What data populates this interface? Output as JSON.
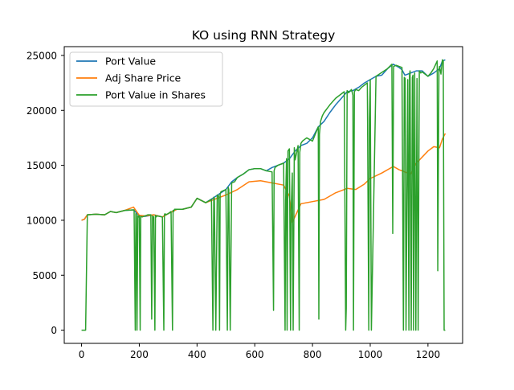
{
  "chart_data": {
    "type": "line",
    "title": "KO using RNN Strategy",
    "xlabel": "",
    "ylabel": "",
    "xlim": [
      -60,
      1320
    ],
    "ylim": [
      -1200,
      25800
    ],
    "xticks": [
      0,
      200,
      400,
      600,
      800,
      1000,
      1200
    ],
    "yticks": [
      0,
      5000,
      10000,
      15000,
      20000,
      25000
    ],
    "grid": false,
    "legend_position": "upper left",
    "series": [
      {
        "name": "Port Value",
        "color": "#1f77b4",
        "x": [
          0,
          10,
          20,
          50,
          80,
          100,
          120,
          150,
          180,
          200,
          220,
          250,
          280,
          300,
          330,
          350,
          380,
          400,
          430,
          460,
          500,
          520,
          540,
          560,
          580,
          600,
          620,
          640,
          660,
          680,
          700,
          720,
          740,
          760,
          780,
          800,
          820,
          840,
          860,
          880,
          900,
          920,
          940,
          960,
          980,
          1000,
          1020,
          1040,
          1060,
          1080,
          1100,
          1110,
          1120,
          1140,
          1160,
          1180,
          1200,
          1220,
          1240,
          1250,
          1260
        ],
        "y": [
          10000,
          10100,
          10500,
          10550,
          10500,
          10800,
          10700,
          10900,
          10950,
          10400,
          10350,
          10500,
          10300,
          10600,
          11000,
          11000,
          11200,
          12000,
          11600,
          12100,
          12800,
          13500,
          13900,
          14200,
          14600,
          14700,
          14700,
          14500,
          14800,
          15000,
          15200,
          15600,
          16300,
          16800,
          17000,
          17500,
          18500,
          19000,
          19800,
          20500,
          21100,
          21700,
          21800,
          22100,
          22500,
          22800,
          23100,
          23200,
          23800,
          24200,
          23900,
          23700,
          23200,
          23400,
          23600,
          23600,
          23100,
          23400,
          23800,
          24500,
          24600
        ]
      },
      {
        "name": "Adj Share Price",
        "color": "#ff7f0e",
        "x": [
          0,
          10,
          20,
          50,
          80,
          100,
          120,
          150,
          180,
          200,
          220,
          250,
          280,
          300,
          330,
          350,
          380,
          400,
          430,
          460,
          500,
          540,
          580,
          620,
          660,
          700,
          720,
          730,
          760,
          800,
          840,
          880,
          920,
          950,
          980,
          1000,
          1040,
          1080,
          1100,
          1140,
          1160,
          1200,
          1220,
          1240,
          1250,
          1260
        ],
        "y": [
          10000,
          10100,
          10500,
          10550,
          10500,
          10800,
          10700,
          10900,
          11200,
          10450,
          10400,
          10500,
          10300,
          10600,
          11000,
          11000,
          11200,
          12000,
          11600,
          11900,
          12300,
          12800,
          13500,
          13600,
          13400,
          13200,
          12200,
          9800,
          11500,
          11700,
          11900,
          12500,
          12900,
          12800,
          13300,
          13800,
          14300,
          14900,
          14600,
          14200,
          15200,
          16300,
          16700,
          16600,
          17400,
          17900
        ]
      },
      {
        "name": "Port Value in Shares",
        "color": "#2ca02c",
        "x": [
          0,
          10,
          12,
          14,
          20,
          50,
          80,
          100,
          120,
          150,
          182,
          186,
          188,
          190,
          192,
          195,
          197,
          200,
          203,
          205,
          210,
          230,
          240,
          243,
          246,
          250,
          254,
          256,
          258,
          262,
          280,
          285,
          287,
          289,
          292,
          300,
          310,
          315,
          317,
          319,
          322,
          330,
          350,
          380,
          400,
          430,
          450,
          455,
          458,
          460,
          465,
          470,
          475,
          478,
          480,
          483,
          500,
          505,
          508,
          510,
          515,
          520,
          530,
          540,
          560,
          580,
          600,
          620,
          640,
          660,
          665,
          667,
          670,
          680,
          700,
          705,
          707,
          710,
          712,
          715,
          720,
          724,
          726,
          730,
          733,
          737,
          740,
          750,
          754,
          756,
          760,
          765,
          780,
          800,
          820,
          822,
          824,
          828,
          834,
          840,
          860,
          880,
          900,
          910,
          915,
          917,
          920,
          925,
          935,
          940,
          942,
          945,
          950,
          960,
          970,
          990,
          995,
          997,
          1000,
          1004,
          1020,
          1060,
          1075,
          1078,
          1081,
          1090,
          1110,
          1115,
          1118,
          1121,
          1124,
          1130,
          1134,
          1136,
          1138,
          1142,
          1146,
          1148,
          1150,
          1154,
          1158,
          1162,
          1166,
          1170,
          1175,
          1180,
          1200,
          1210,
          1220,
          1232,
          1234,
          1238,
          1240,
          1245,
          1250,
          1253,
          1256,
          1260
        ],
        "y": [
          0,
          0,
          0,
          0,
          10500,
          10550,
          10500,
          10800,
          10700,
          10900,
          10950,
          0,
          10600,
          10500,
          0,
          10400,
          10300,
          10400,
          0,
          10350,
          10300,
          10500,
          10500,
          1000,
          10400,
          10300,
          0,
          10450,
          10300,
          10400,
          10300,
          0,
          10500,
          10600,
          10500,
          10600,
          10800,
          0,
          10900,
          10800,
          11000,
          11000,
          11000,
          11200,
          12000,
          11600,
          11900,
          0,
          12100,
          12000,
          0,
          12300,
          12200,
          0,
          12400,
          12600,
          12800,
          0,
          13000,
          12800,
          0,
          13400,
          13500,
          13900,
          14200,
          14600,
          14700,
          14700,
          14500,
          14400,
          1800,
          14500,
          14800,
          15000,
          15200,
          0,
          11800,
          15600,
          0,
          16300,
          16500,
          0,
          10700,
          14300,
          0,
          16600,
          15500,
          16800,
          0,
          16200,
          17000,
          17200,
          17500,
          17200,
          18500,
          1000,
          17800,
          19000,
          19500,
          19800,
          20500,
          21100,
          21500,
          21700,
          0,
          2000,
          21800,
          21600,
          21900,
          21400,
          0,
          21700,
          21900,
          21800,
          22100,
          22500,
          0,
          19200,
          22800,
          0,
          23100,
          23800,
          24200,
          8800,
          24000,
          24100,
          23900,
          0,
          23000,
          22900,
          0,
          22800,
          0,
          23200,
          23600,
          0,
          23000,
          23200,
          0,
          23400,
          0,
          22900,
          0,
          23600,
          23400,
          23500,
          23100,
          23400,
          23800,
          24500,
          5400,
          23600,
          24000,
          23300,
          24600,
          24500,
          0,
          0
        ]
      }
    ]
  }
}
